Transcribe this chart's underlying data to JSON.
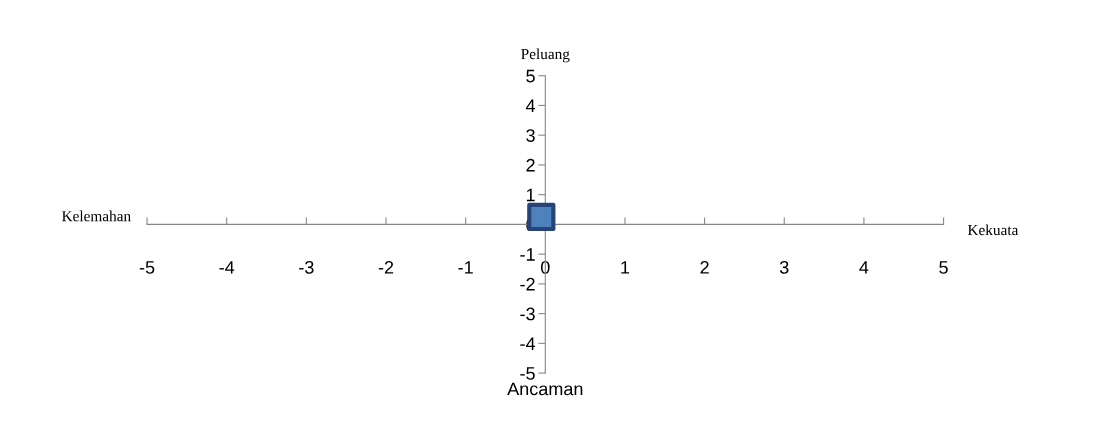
{
  "chart_data": {
    "type": "scatter",
    "x": [
      -0.05
    ],
    "values": [
      0.25
    ],
    "color": "#4f81bd",
    "marker": "square",
    "xlim": [
      -5,
      5
    ],
    "xticks": [
      -5,
      -4,
      -3,
      -2,
      -1,
      0,
      1,
      2,
      3,
      4,
      5
    ],
    "ylim": [
      -5,
      5
    ],
    "yticks": [
      -5,
      -4,
      -3,
      -2,
      -1,
      0,
      1,
      2,
      3,
      4,
      5
    ],
    "grid": false,
    "legend": false,
    "annotations": [
      "Peluang",
      "Ancaman",
      "Kelemahan",
      "Kekuata"
    ]
  }
}
